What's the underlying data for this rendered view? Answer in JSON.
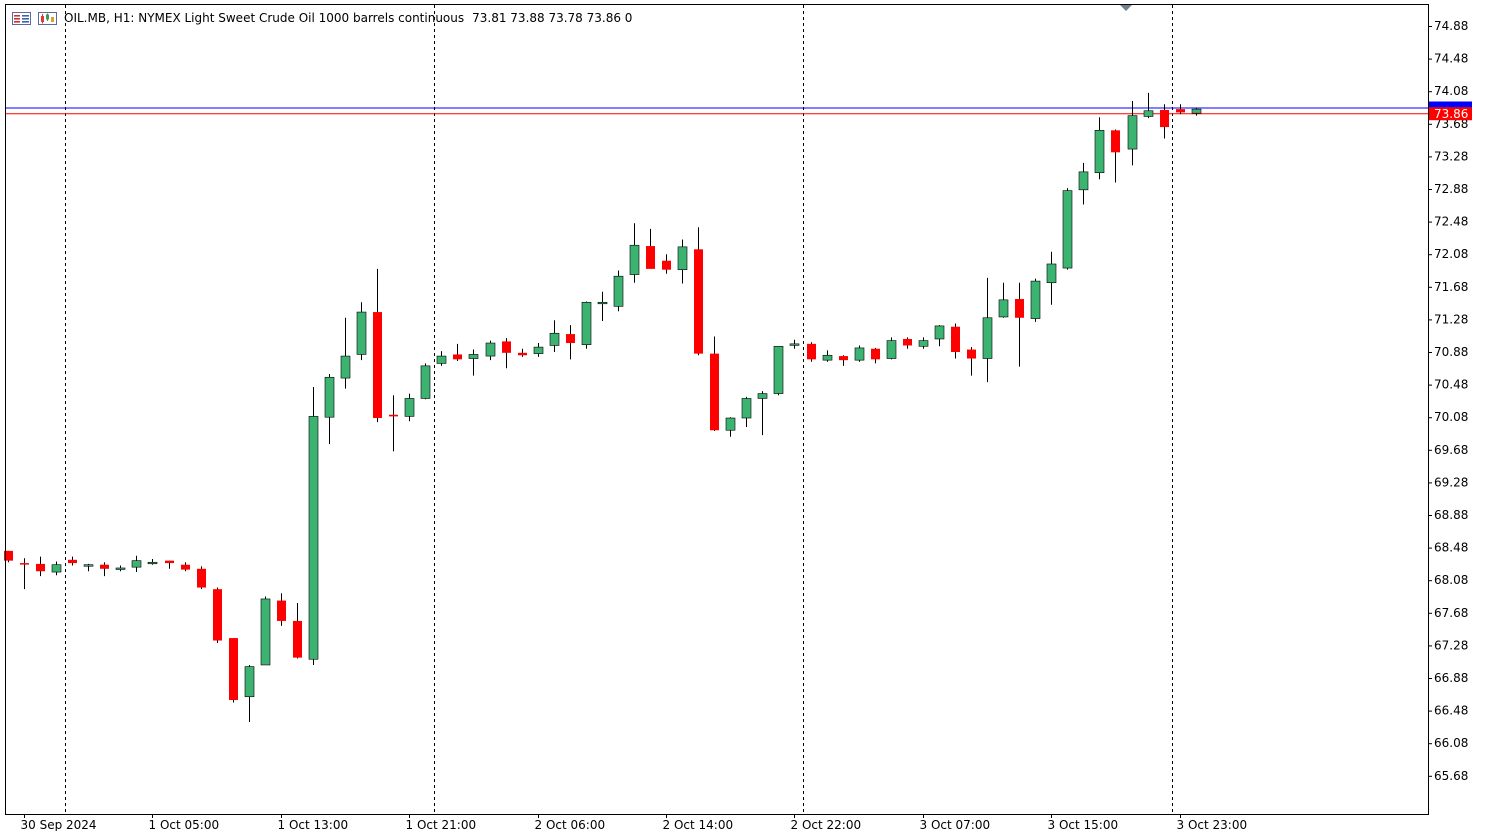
{
  "header": {
    "symbol_line": "OIL.MB, H1:  NYMEX Light Sweet Crude Oil 1000 barrels continuous",
    "ohlc_line": "73.81 73.88 73.78 73.86  0",
    "icons": [
      "menu-icon",
      "chart-icon"
    ]
  },
  "colors": {
    "bull": "#3cb371",
    "bear": "#ff0000",
    "wick": "#000000",
    "bid_line": "#ff0000",
    "ask_line": "#0000ff",
    "grid": "#000000",
    "price_tag_bg": "#ff0000"
  },
  "chart_data": {
    "type": "candlestick",
    "timeframe": "H1",
    "yaxis_ticks": [
      "74.88",
      "74.48",
      "74.08",
      "73.68",
      "73.28",
      "72.88",
      "72.48",
      "72.08",
      "71.68",
      "71.28",
      "70.88",
      "70.48",
      "70.08",
      "69.68",
      "69.28",
      "68.88",
      "68.48",
      "68.08",
      "67.68",
      "67.28",
      "66.88",
      "66.48",
      "66.08",
      "65.68"
    ],
    "ylim": [
      65.39,
      75.28
    ],
    "xaxis_labels": [
      "30 Sep 2024",
      "1 Oct 05:00",
      "1 Oct 13:00",
      "1 Oct 21:00",
      "2 Oct 06:00",
      "2 Oct 14:00",
      "2 Oct 22:00",
      "3 Oct 07:00",
      "3 Oct 15:00",
      "3 Oct 23:00"
    ],
    "day_separators_after_bar": [
      3.5,
      26.5,
      49.5,
      72.5
    ],
    "bid": 73.81,
    "ask": 73.88,
    "last_price_label": "73.86",
    "candles": [
      {
        "o": 68.44,
        "h": 68.44,
        "l": 68.3,
        "c": 68.32
      },
      {
        "o": 68.29,
        "h": 68.35,
        "l": 67.97,
        "c": 68.28
      },
      {
        "o": 68.28,
        "h": 68.37,
        "l": 68.13,
        "c": 68.19
      },
      {
        "o": 68.18,
        "h": 68.31,
        "l": 68.14,
        "c": 68.27
      },
      {
        "o": 68.33,
        "h": 68.37,
        "l": 68.26,
        "c": 68.29
      },
      {
        "o": 68.27,
        "h": 68.28,
        "l": 68.19,
        "c": 68.27
      },
      {
        "o": 68.27,
        "h": 68.3,
        "l": 68.13,
        "c": 68.22
      },
      {
        "o": 68.22,
        "h": 68.26,
        "l": 68.19,
        "c": 68.23
      },
      {
        "o": 68.24,
        "h": 68.38,
        "l": 68.18,
        "c": 68.32
      },
      {
        "o": 68.29,
        "h": 68.34,
        "l": 68.27,
        "c": 68.3
      },
      {
        "o": 68.32,
        "h": 68.32,
        "l": 68.22,
        "c": 68.29
      },
      {
        "o": 68.27,
        "h": 68.3,
        "l": 68.19,
        "c": 68.21
      },
      {
        "o": 68.22,
        "h": 68.25,
        "l": 67.97,
        "c": 67.99
      },
      {
        "o": 67.97,
        "h": 67.99,
        "l": 67.31,
        "c": 67.34
      },
      {
        "o": 67.37,
        "h": 67.37,
        "l": 66.58,
        "c": 66.61
      },
      {
        "o": 66.65,
        "h": 67.04,
        "l": 66.34,
        "c": 67.02
      },
      {
        "o": 67.04,
        "h": 67.88,
        "l": 67.04,
        "c": 67.85
      },
      {
        "o": 67.83,
        "h": 67.92,
        "l": 67.52,
        "c": 67.58
      },
      {
        "o": 67.58,
        "h": 67.8,
        "l": 67.12,
        "c": 67.13
      },
      {
        "o": 67.11,
        "h": 70.45,
        "l": 67.04,
        "c": 70.09
      },
      {
        "o": 70.08,
        "h": 70.61,
        "l": 69.75,
        "c": 70.57
      },
      {
        "o": 70.56,
        "h": 71.3,
        "l": 70.43,
        "c": 70.83
      },
      {
        "o": 70.85,
        "h": 71.49,
        "l": 70.78,
        "c": 71.37
      },
      {
        "o": 71.37,
        "h": 71.9,
        "l": 70.02,
        "c": 70.07
      },
      {
        "o": 70.11,
        "h": 70.35,
        "l": 69.66,
        "c": 70.09
      },
      {
        "o": 70.09,
        "h": 70.37,
        "l": 70.03,
        "c": 70.31
      },
      {
        "o": 70.31,
        "h": 70.74,
        "l": 70.3,
        "c": 70.71
      },
      {
        "o": 70.74,
        "h": 70.89,
        "l": 70.71,
        "c": 70.83
      },
      {
        "o": 70.85,
        "h": 70.98,
        "l": 70.77,
        "c": 70.79
      },
      {
        "o": 70.8,
        "h": 70.91,
        "l": 70.59,
        "c": 70.85
      },
      {
        "o": 70.83,
        "h": 71.02,
        "l": 70.78,
        "c": 70.99
      },
      {
        "o": 71.01,
        "h": 71.05,
        "l": 70.68,
        "c": 70.87
      },
      {
        "o": 70.87,
        "h": 70.92,
        "l": 70.82,
        "c": 70.84
      },
      {
        "o": 70.86,
        "h": 70.99,
        "l": 70.82,
        "c": 70.94
      },
      {
        "o": 70.96,
        "h": 71.27,
        "l": 70.88,
        "c": 71.11
      },
      {
        "o": 71.1,
        "h": 71.21,
        "l": 70.79,
        "c": 70.99
      },
      {
        "o": 70.97,
        "h": 71.5,
        "l": 70.92,
        "c": 71.49
      },
      {
        "o": 71.48,
        "h": 71.62,
        "l": 71.26,
        "c": 71.49
      },
      {
        "o": 71.44,
        "h": 71.88,
        "l": 71.38,
        "c": 71.81
      },
      {
        "o": 71.83,
        "h": 72.46,
        "l": 71.73,
        "c": 72.19
      },
      {
        "o": 72.18,
        "h": 72.39,
        "l": 71.91,
        "c": 71.9
      },
      {
        "o": 72.0,
        "h": 72.08,
        "l": 71.84,
        "c": 71.89
      },
      {
        "o": 71.89,
        "h": 72.26,
        "l": 71.72,
        "c": 72.17
      },
      {
        "o": 72.14,
        "h": 72.41,
        "l": 70.84,
        "c": 70.86
      },
      {
        "o": 70.86,
        "h": 71.07,
        "l": 69.91,
        "c": 69.92
      },
      {
        "o": 69.92,
        "h": 70.08,
        "l": 69.84,
        "c": 70.07
      },
      {
        "o": 70.07,
        "h": 70.33,
        "l": 69.96,
        "c": 70.31
      },
      {
        "o": 70.31,
        "h": 70.4,
        "l": 69.86,
        "c": 70.37
      },
      {
        "o": 70.37,
        "h": 70.95,
        "l": 70.35,
        "c": 70.95
      },
      {
        "o": 70.97,
        "h": 71.03,
        "l": 70.92,
        "c": 70.98
      },
      {
        "o": 70.98,
        "h": 71.0,
        "l": 70.76,
        "c": 70.79
      },
      {
        "o": 70.78,
        "h": 70.9,
        "l": 70.76,
        "c": 70.84
      },
      {
        "o": 70.83,
        "h": 70.84,
        "l": 70.71,
        "c": 70.78
      },
      {
        "o": 70.78,
        "h": 70.96,
        "l": 70.76,
        "c": 70.93
      },
      {
        "o": 70.92,
        "h": 70.93,
        "l": 70.74,
        "c": 70.79
      },
      {
        "o": 70.8,
        "h": 71.06,
        "l": 70.79,
        "c": 71.02
      },
      {
        "o": 71.04,
        "h": 71.06,
        "l": 70.92,
        "c": 70.96
      },
      {
        "o": 70.95,
        "h": 71.06,
        "l": 70.92,
        "c": 71.02
      },
      {
        "o": 71.04,
        "h": 71.21,
        "l": 70.95,
        "c": 71.2
      },
      {
        "o": 71.19,
        "h": 71.23,
        "l": 70.8,
        "c": 70.88
      },
      {
        "o": 70.91,
        "h": 70.94,
        "l": 70.59,
        "c": 70.8
      },
      {
        "o": 70.8,
        "h": 71.79,
        "l": 70.51,
        "c": 71.3
      },
      {
        "o": 71.31,
        "h": 71.73,
        "l": 71.3,
        "c": 71.52
      },
      {
        "o": 71.53,
        "h": 71.73,
        "l": 70.7,
        "c": 71.3
      },
      {
        "o": 71.29,
        "h": 71.78,
        "l": 71.25,
        "c": 71.75
      },
      {
        "o": 71.73,
        "h": 72.11,
        "l": 71.46,
        "c": 71.96
      },
      {
        "o": 71.91,
        "h": 72.89,
        "l": 71.89,
        "c": 72.86
      },
      {
        "o": 72.87,
        "h": 73.2,
        "l": 72.69,
        "c": 73.09
      },
      {
        "o": 73.08,
        "h": 73.76,
        "l": 73.0,
        "c": 73.6
      },
      {
        "o": 73.6,
        "h": 73.61,
        "l": 72.96,
        "c": 73.33
      },
      {
        "o": 73.37,
        "h": 73.96,
        "l": 73.17,
        "c": 73.78
      },
      {
        "o": 73.77,
        "h": 74.06,
        "l": 73.75,
        "c": 73.84
      },
      {
        "o": 73.85,
        "h": 73.92,
        "l": 73.5,
        "c": 73.64
      },
      {
        "o": 73.86,
        "h": 73.92,
        "l": 73.8,
        "c": 73.82
      },
      {
        "o": 73.81,
        "h": 73.88,
        "l": 73.78,
        "c": 73.86
      }
    ]
  }
}
